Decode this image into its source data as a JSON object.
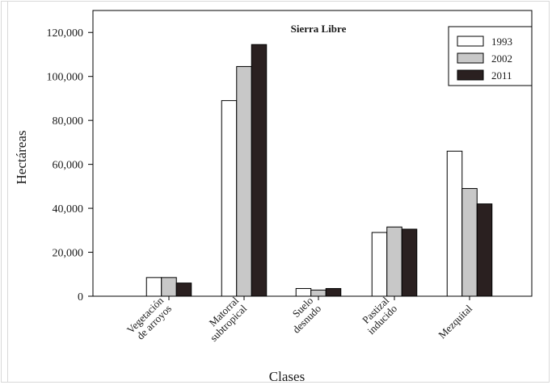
{
  "chart_data": {
    "type": "bar",
    "title": "Sierra Libre",
    "xlabel": "Clases",
    "ylabel": "Hectáreas",
    "ylim": [
      0,
      130000
    ],
    "yticks": [
      0,
      20000,
      40000,
      60000,
      80000,
      100000,
      120000
    ],
    "ytick_labels": [
      "0",
      "20,000",
      "40,000",
      "60,000",
      "80,000",
      "100,000",
      "120,000"
    ],
    "categories": [
      [
        "Vegetación",
        "de arroyos"
      ],
      [
        "Matorral",
        "subtropical"
      ],
      [
        "Suelo",
        "desnudo"
      ],
      [
        "Pastizal",
        "inducido"
      ],
      [
        "Mezquital"
      ]
    ],
    "series": [
      {
        "name": "1993",
        "color": "#ffffff",
        "values": [
          8500,
          89000,
          3500,
          29000,
          66000
        ]
      },
      {
        "name": "2002",
        "color": "#c8c8c8",
        "values": [
          8500,
          104500,
          2800,
          31500,
          49000
        ]
      },
      {
        "name": "2011",
        "color": "#2a2020",
        "values": [
          6000,
          114500,
          3500,
          30500,
          42000
        ]
      }
    ],
    "legend_position": "top-right",
    "grid": false
  }
}
